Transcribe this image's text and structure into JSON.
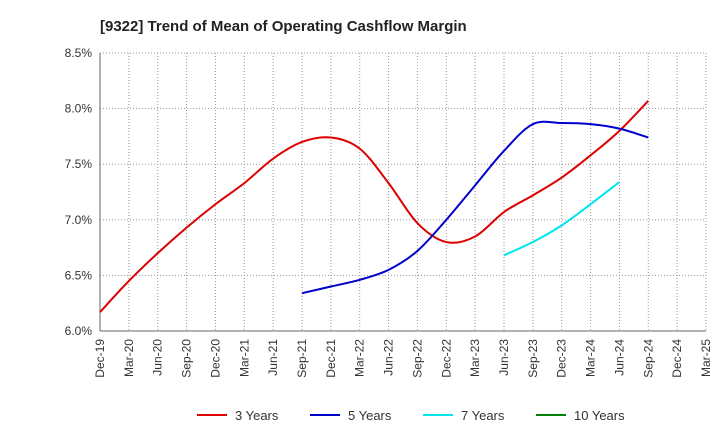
{
  "chart_data": {
    "type": "line",
    "title": "[9322]  Trend of Mean of Operating Cashflow Margin",
    "xlabel": "",
    "ylabel": "",
    "x": [
      "Dec-19",
      "Mar-20",
      "Jun-20",
      "Sep-20",
      "Dec-20",
      "Mar-21",
      "Jun-21",
      "Sep-21",
      "Dec-21",
      "Mar-22",
      "Jun-22",
      "Sep-22",
      "Dec-22",
      "Mar-23",
      "Jun-23",
      "Sep-23",
      "Dec-23",
      "Mar-24",
      "Jun-24",
      "Sep-24",
      "Dec-24",
      "Mar-25"
    ],
    "y_ticks": [
      "6.0%",
      "6.5%",
      "7.0%",
      "7.5%",
      "8.0%",
      "8.5%"
    ],
    "ylim": [
      6.0,
      8.5
    ],
    "grid": true,
    "legend_position": "bottom",
    "series": [
      {
        "name": "3 Years",
        "color": "#dd0000",
        "values": [
          6.17,
          6.45,
          6.7,
          6.93,
          7.14,
          7.33,
          7.55,
          7.7,
          7.74,
          7.64,
          7.33,
          6.97,
          6.8,
          6.85,
          7.07,
          7.22,
          7.38,
          7.58,
          7.8,
          8.07,
          null,
          null
        ]
      },
      {
        "name": "5 Years",
        "color": "#0000cc",
        "values": [
          null,
          null,
          null,
          null,
          null,
          null,
          null,
          6.34,
          6.4,
          6.46,
          6.55,
          6.72,
          7.0,
          7.31,
          7.62,
          7.86,
          7.87,
          7.86,
          7.82,
          7.74,
          null,
          null
        ]
      },
      {
        "name": "7 Years",
        "color": "#00e5ee",
        "values": [
          null,
          null,
          null,
          null,
          null,
          null,
          null,
          null,
          null,
          null,
          null,
          null,
          null,
          null,
          6.68,
          6.8,
          6.95,
          7.14,
          7.34,
          null,
          null,
          null
        ]
      },
      {
        "name": "10 Years",
        "color": "#008000",
        "values": [
          null,
          null,
          null,
          null,
          null,
          null,
          null,
          null,
          null,
          null,
          null,
          null,
          null,
          null,
          null,
          null,
          null,
          null,
          null,
          null,
          null,
          null
        ]
      }
    ]
  }
}
